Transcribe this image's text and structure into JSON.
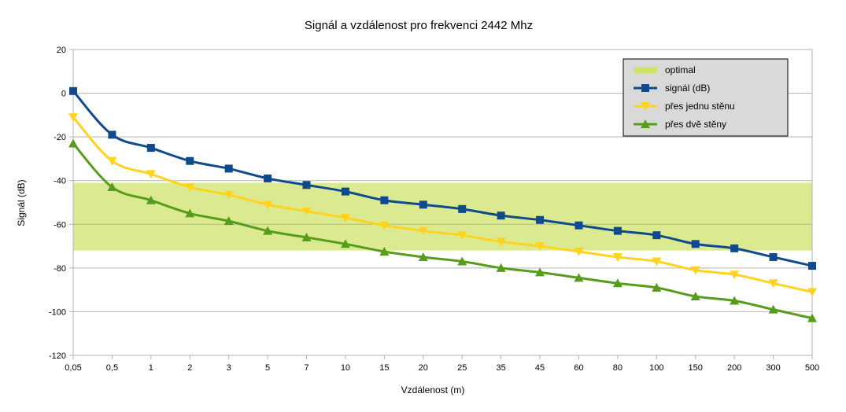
{
  "chart_data": {
    "type": "line",
    "title": "Signál a vzdálenost pro frekvenci 2442 Mhz",
    "xlabel": "Vzdálenost (m)",
    "ylabel": "Signál (dB)",
    "categories": [
      "0,05",
      "0,5",
      "1",
      "2",
      "3",
      "5",
      "7",
      "10",
      "15",
      "20",
      "25",
      "35",
      "45",
      "60",
      "80",
      "100",
      "150",
      "200",
      "300",
      "500"
    ],
    "ylim": [
      -120,
      20
    ],
    "yticks": [
      "20",
      "0",
      "-20",
      "-40",
      "-60",
      "-80",
      "-100",
      "-120"
    ],
    "grid": "horizontal",
    "legend_position": "top-right",
    "optimal_band": {
      "name": "optimal",
      "from": -72,
      "to": -41,
      "color": "#cfe36b"
    },
    "series": [
      {
        "name": "signál (dB)",
        "color": "#0e4a8c",
        "marker": "square",
        "values": [
          1,
          -19,
          -25,
          -31,
          -34.5,
          -39,
          -42,
          -45,
          -49,
          -51,
          -53,
          -56,
          -58,
          -60.5,
          -63,
          -65,
          -69,
          -71,
          -75,
          -79
        ]
      },
      {
        "name": "přes jednu stěnu",
        "color": "#ffd320",
        "marker": "triangle-down",
        "values": [
          -11,
          -31,
          -37,
          -43,
          -46.5,
          -51,
          -54,
          -57,
          -60.5,
          -63,
          -65,
          -68,
          -70,
          -72.5,
          -75,
          -77,
          -81,
          -83,
          -87,
          -91
        ]
      },
      {
        "name": "přes dvě stěny",
        "color": "#579d1c",
        "marker": "triangle-up",
        "values": [
          -23,
          -43,
          -49,
          -55,
          -58.5,
          -63,
          -66,
          -69,
          -72.5,
          -75,
          -77,
          -80,
          -82,
          -84.5,
          -87,
          -89,
          -93,
          -95,
          -99,
          -103
        ]
      }
    ]
  }
}
